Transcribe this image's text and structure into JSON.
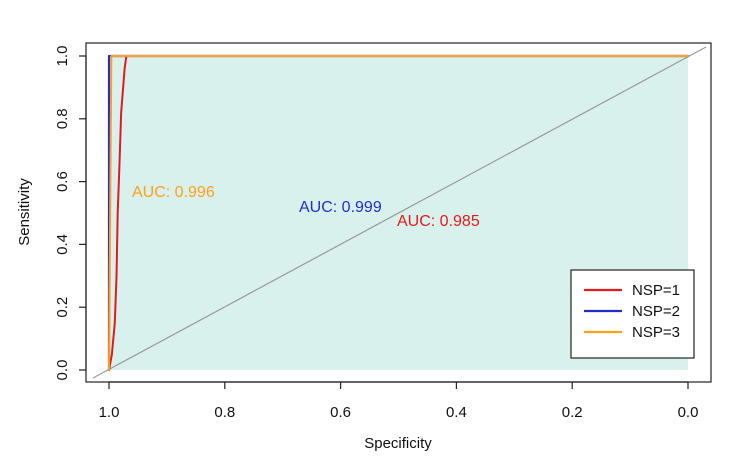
{
  "chart_data": {
    "type": "line",
    "xlabel": "Specificity",
    "ylabel": "Sensitivity",
    "x_ticks": [
      "1.0",
      "0.8",
      "0.6",
      "0.4",
      "0.2",
      "0.0"
    ],
    "y_ticks": [
      "0.0",
      "0.2",
      "0.4",
      "0.6",
      "0.8",
      "1.0"
    ],
    "xlim": [
      1.0,
      0.0
    ],
    "ylim": [
      0.0,
      1.0
    ],
    "reversed_x_axis": true,
    "grid": false,
    "legend_position": "bottom-right",
    "legend": [
      "NSP=1",
      "NSP=2",
      "NSP=3"
    ],
    "reference_line": {
      "from": [
        1.0,
        0.0
      ],
      "to": [
        0.0,
        1.0
      ],
      "color": "#9a9a9a"
    },
    "shaded_region": {
      "color": "#d8f1ec"
    },
    "series": [
      {
        "name": "NSP=1",
        "color": "#e31a1c",
        "auc_label": "AUC: 0.985",
        "points": [
          {
            "x": 1.0,
            "y": 0.0
          },
          {
            "x": 0.995,
            "y": 0.05
          },
          {
            "x": 0.99,
            "y": 0.15
          },
          {
            "x": 0.987,
            "y": 0.3
          },
          {
            "x": 0.985,
            "y": 0.5
          },
          {
            "x": 0.982,
            "y": 0.65
          },
          {
            "x": 0.979,
            "y": 0.82
          },
          {
            "x": 0.973,
            "y": 0.96
          },
          {
            "x": 0.97,
            "y": 1.0
          },
          {
            "x": 0.0,
            "y": 1.0
          }
        ]
      },
      {
        "name": "NSP=2",
        "color": "#1f2ecf",
        "auc_label": "AUC: 0.999",
        "points": [
          {
            "x": 1.0,
            "y": 0.0
          },
          {
            "x": 1.0,
            "y": 1.0
          },
          {
            "x": 0.0,
            "y": 1.0
          }
        ]
      },
      {
        "name": "NSP=3",
        "color": "#ff9f1a",
        "auc_label": "AUC: 0.996",
        "points": [
          {
            "x": 1.0,
            "y": 0.0
          },
          {
            "x": 0.999,
            "y": 0.25
          },
          {
            "x": 0.998,
            "y": 0.5
          },
          {
            "x": 0.997,
            "y": 0.75
          },
          {
            "x": 0.996,
            "y": 1.0
          },
          {
            "x": 0.0,
            "y": 1.0
          }
        ]
      }
    ]
  }
}
